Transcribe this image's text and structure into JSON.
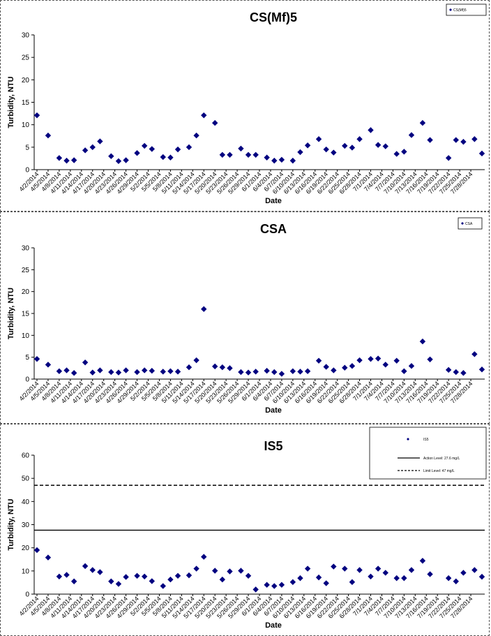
{
  "chart_data": [
    {
      "type": "scatter",
      "title": "CS(Mf)5",
      "xlabel": "Date",
      "ylabel": "Turbidity, NTU",
      "ylim": [
        0,
        30
      ],
      "yticks": [
        0,
        5,
        10,
        15,
        20,
        25,
        30
      ],
      "marker_color": "#000080",
      "legend_position": "top-right",
      "series": [
        {
          "name": "CS(Mf)5",
          "x": [
            "4/2/2014",
            "4/5/2014",
            "4/8/2014",
            "4/10/2014",
            "4/12/2014",
            "4/15/2014",
            "4/17/2014",
            "4/19/2014",
            "4/22/2014",
            "4/24/2014",
            "4/26/2014",
            "4/29/2014",
            "5/1/2014",
            "5/3/2014",
            "5/6/2014",
            "5/8/2014",
            "5/10/2014",
            "5/13/2014",
            "5/15/2014",
            "5/17/2014",
            "5/20/2014",
            "5/22/2014",
            "5/24/2014",
            "5/27/2014",
            "5/29/2014",
            "5/31/2014",
            "6/3/2014",
            "6/5/2014",
            "6/7/2014",
            "6/10/2014",
            "6/12/2014",
            "6/14/2014",
            "6/17/2014",
            "6/19/2014",
            "6/21/2014",
            "6/24/2014",
            "6/26/2014",
            "6/28/2014",
            "7/1/2014",
            "7/3/2014",
            "7/5/2014",
            "7/8/2014",
            "7/10/2014",
            "7/12/2014",
            "7/15/2014",
            "7/17/2014",
            "7/22/2014",
            "7/24/2014",
            "7/26/2014",
            "7/29/2014",
            "7/31/2014"
          ],
          "y": [
            12.1,
            7.6,
            2.6,
            2.0,
            2.1,
            4.3,
            5.0,
            6.3,
            3.0,
            1.9,
            2.1,
            3.7,
            5.3,
            4.6,
            2.8,
            2.7,
            4.5,
            5.0,
            7.6,
            12.1,
            10.4,
            3.3,
            3.3,
            4.7,
            3.3,
            3.3,
            2.7,
            2.0,
            2.2,
            2.0,
            3.9,
            5.4,
            6.8,
            4.5,
            3.8,
            5.3,
            4.9,
            6.8,
            8.8,
            5.5,
            5.2,
            3.5,
            4.0,
            7.7,
            10.4,
            6.6,
            2.6,
            6.6,
            6.2,
            6.8,
            3.6
          ]
        }
      ],
      "x_tick_labels": [
        "4/2/2014",
        "4/5/2014",
        "4/8/2014",
        "4/11/2014",
        "4/14/2014",
        "4/17/2014",
        "4/20/2014",
        "4/23/2014",
        "4/26/2014",
        "4/29/2014",
        "5/2/2014",
        "5/5/2014",
        "5/8/2014",
        "5/11/2014",
        "5/14/2014",
        "5/17/2014",
        "5/20/2014",
        "5/23/2014",
        "5/26/2014",
        "5/29/2014",
        "6/1/2014",
        "6/4/2014",
        "6/7/2014",
        "6/10/2014",
        "6/13/2014",
        "6/16/2014",
        "6/19/2014",
        "6/22/2014",
        "6/25/2014",
        "6/28/2014",
        "7/1/2014",
        "7/4/2014",
        "7/7/2014",
        "7/10/2014",
        "7/13/2014",
        "7/16/2014",
        "7/19/2014",
        "7/22/2014",
        "7/25/2014",
        "7/28/2014"
      ]
    },
    {
      "type": "scatter",
      "title": "CSA",
      "xlabel": "Date",
      "ylabel": "Turbidity, NTU",
      "ylim": [
        0,
        30
      ],
      "yticks": [
        0,
        5,
        10,
        15,
        20,
        25,
        30
      ],
      "marker_color": "#000080",
      "legend_position": "top-right",
      "series": [
        {
          "name": "CSA",
          "x": [
            "4/2/2014",
            "4/5/2014",
            "4/8/2014",
            "4/10/2014",
            "4/12/2014",
            "4/15/2014",
            "4/17/2014",
            "4/19/2014",
            "4/22/2014",
            "4/24/2014",
            "4/26/2014",
            "4/29/2014",
            "5/1/2014",
            "5/3/2014",
            "5/6/2014",
            "5/8/2014",
            "5/10/2014",
            "5/13/2014",
            "5/15/2014",
            "5/17/2014",
            "5/20/2014",
            "5/22/2014",
            "5/24/2014",
            "5/27/2014",
            "5/29/2014",
            "5/31/2014",
            "6/3/2014",
            "6/5/2014",
            "6/7/2014",
            "6/10/2014",
            "6/12/2014",
            "6/14/2014",
            "6/17/2014",
            "6/19/2014",
            "6/21/2014",
            "6/24/2014",
            "6/26/2014",
            "6/28/2014",
            "7/1/2014",
            "7/3/2014",
            "7/5/2014",
            "7/8/2014",
            "7/10/2014",
            "7/12/2014",
            "7/15/2014",
            "7/17/2014",
            "7/22/2014",
            "7/24/2014",
            "7/26/2014",
            "7/29/2014",
            "7/31/2014"
          ],
          "y": [
            4.6,
            3.3,
            1.8,
            2.0,
            1.4,
            3.8,
            1.5,
            2.0,
            1.6,
            1.5,
            2.0,
            1.6,
            2.0,
            1.9,
            1.7,
            1.8,
            1.7,
            2.7,
            4.3,
            16.0,
            2.9,
            2.7,
            2.5,
            1.6,
            1.5,
            1.7,
            1.9,
            1.6,
            1.2,
            1.8,
            1.7,
            1.8,
            4.2,
            2.8,
            2.0,
            2.6,
            3.0,
            4.3,
            4.6,
            4.7,
            3.3,
            4.2,
            1.8,
            3.0,
            8.6,
            4.5,
            2.1,
            1.6,
            1.4,
            5.7,
            2.2
          ]
        }
      ],
      "x_tick_labels": [
        "4/2/2014",
        "4/5/2014",
        "4/8/2014",
        "4/11/2014",
        "4/14/2014",
        "4/17/2014",
        "4/20/2014",
        "4/23/2014",
        "4/26/2014",
        "4/29/2014",
        "5/2/2014",
        "5/5/2014",
        "5/8/2014",
        "5/11/2014",
        "5/14/2014",
        "5/17/2014",
        "5/20/2014",
        "5/23/2014",
        "5/26/2014",
        "5/29/2014",
        "6/1/2014",
        "6/4/2014",
        "6/7/2014",
        "6/10/2014",
        "6/13/2014",
        "6/16/2014",
        "6/19/2014",
        "6/22/2014",
        "6/25/2014",
        "6/28/2014",
        "7/1/2014",
        "7/4/2014",
        "7/7/2014",
        "7/10/2014",
        "7/13/2014",
        "7/16/2014",
        "7/19/2014",
        "7/22/2014",
        "7/25/2014",
        "7/28/2014"
      ]
    },
    {
      "type": "scatter",
      "title": "IS5",
      "xlabel": "Date",
      "ylabel": "Turbidity, NTU",
      "ylim": [
        0,
        60
      ],
      "yticks": [
        0,
        10,
        20,
        30,
        40,
        50,
        60
      ],
      "marker_color": "#000080",
      "legend_position": "top-right",
      "series": [
        {
          "name": "IS5",
          "x": [
            "4/2/2014",
            "4/5/2014",
            "4/8/2014",
            "4/10/2014",
            "4/12/2014",
            "4/15/2014",
            "4/17/2014",
            "4/19/2014",
            "4/22/2014",
            "4/24/2014",
            "4/26/2014",
            "4/29/2014",
            "5/1/2014",
            "5/3/2014",
            "5/6/2014",
            "5/8/2014",
            "5/10/2014",
            "5/13/2014",
            "5/15/2014",
            "5/17/2014",
            "5/20/2014",
            "5/22/2014",
            "5/24/2014",
            "5/27/2014",
            "5/29/2014",
            "5/31/2014",
            "6/3/2014",
            "6/5/2014",
            "6/7/2014",
            "6/10/2014",
            "6/12/2014",
            "6/14/2014",
            "6/17/2014",
            "6/19/2014",
            "6/21/2014",
            "6/24/2014",
            "6/26/2014",
            "6/28/2014",
            "7/1/2014",
            "7/3/2014",
            "7/5/2014",
            "7/8/2014",
            "7/10/2014",
            "7/12/2014",
            "7/15/2014",
            "7/17/2014",
            "7/22/2014",
            "7/24/2014",
            "7/26/2014",
            "7/29/2014",
            "7/31/2014"
          ],
          "y": [
            19,
            15.8,
            7.6,
            8.3,
            5.5,
            12.1,
            10.4,
            9.5,
            5.5,
            4.4,
            7.4,
            7.9,
            7.6,
            5.6,
            3.5,
            6.3,
            7.9,
            8.1,
            11.0,
            16.1,
            10.1,
            6.3,
            9.8,
            10.1,
            7.9,
            2.0,
            4.0,
            3.5,
            4.0,
            5.2,
            6.9,
            11.0,
            7.2,
            4.7,
            11.9,
            11.0,
            5.2,
            10.4,
            7.6,
            11.0,
            9.2,
            6.9,
            6.9,
            10.4,
            14.4,
            8.6,
            6.9,
            5.5,
            9.2,
            10.4,
            7.5
          ]
        }
      ],
      "reference_lines": [
        {
          "name": "Action Level: 27.6 mg/L",
          "value": 27.6,
          "style": "solid"
        },
        {
          "name": "Limit Level: 47 mg/L",
          "value": 47,
          "style": "dashed"
        }
      ],
      "x_tick_labels": [
        "4/2/2014",
        "4/5/2014",
        "4/8/2014",
        "4/11/2014",
        "4/14/2014",
        "4/17/2014",
        "4/20/2014",
        "4/23/2014",
        "4/26/2014",
        "4/29/2014",
        "5/2/2014",
        "5/5/2014",
        "5/8/2014",
        "5/11/2014",
        "5/14/2014",
        "5/17/2014",
        "5/20/2014",
        "5/23/2014",
        "5/26/2014",
        "5/29/2014",
        "6/1/2014",
        "6/4/2014",
        "6/7/2014",
        "6/10/2014",
        "6/13/2014",
        "6/16/2014",
        "6/19/2014",
        "6/22/2014",
        "6/25/2014",
        "6/28/2014",
        "7/1/2014",
        "7/4/2014",
        "7/7/2014",
        "7/10/2014",
        "7/13/2014",
        "7/16/2014",
        "7/19/2014",
        "7/22/2014",
        "7/25/2014",
        "7/28/2014"
      ]
    }
  ]
}
